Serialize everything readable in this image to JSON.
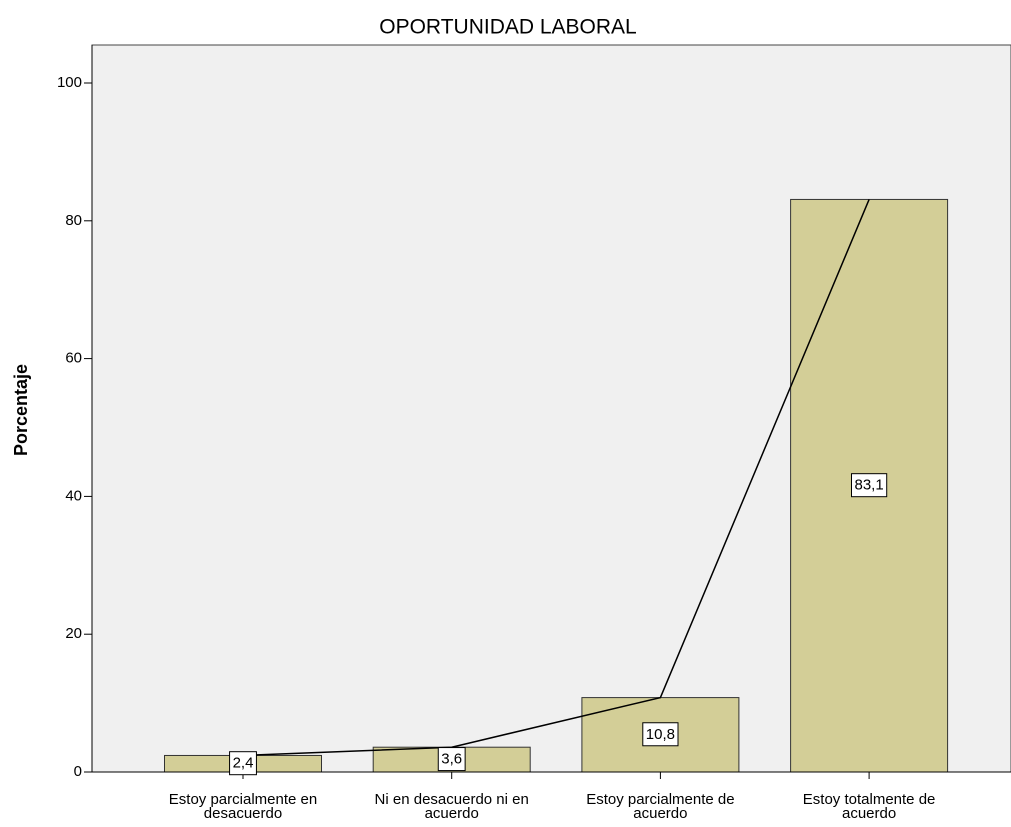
{
  "chart_data": {
    "type": "bar",
    "title": "OPORTUNIDAD LABORAL",
    "y_label": "Porcentaje",
    "categories": [
      "Estoy parcialmente en desacuerdo",
      "Ni en desacuerdo ni en acuerdo",
      "Estoy parcialmente de acuerdo",
      "Estoy totalmente de acuerdo"
    ],
    "values": [
      2.4,
      3.6,
      10.8,
      83.1
    ],
    "value_labels": [
      "2,4",
      "3,6",
      "10,8",
      "83,1"
    ],
    "color": "#d3ce97",
    "line_color": "#000000",
    "ylim": [
      0,
      105
    ],
    "yticks": [
      0,
      20,
      40,
      60,
      80,
      100
    ],
    "grid": false
  }
}
